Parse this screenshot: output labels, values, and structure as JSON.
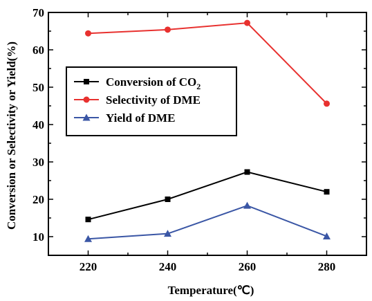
{
  "chart_data": {
    "type": "line",
    "x": [
      220,
      240,
      260,
      280
    ],
    "xlabel": "Temperature(℃)",
    "ylabel": "Conversion or Selectivity or Yield(%)",
    "xlim": [
      210,
      290
    ],
    "ylim": [
      5,
      70
    ],
    "xticks": [
      "220",
      "240",
      "260",
      "280"
    ],
    "yticks": [
      "10",
      "20",
      "30",
      "40",
      "50",
      "60",
      "70"
    ],
    "grid": false,
    "legend_placement": "center-left",
    "series": [
      {
        "name": "Conversion of CO2",
        "name_main": "Conversion of CO",
        "name_sub": "2",
        "color": "#000000",
        "marker": "square",
        "values": [
          14.6,
          20.0,
          27.3,
          22.0
        ]
      },
      {
        "name": "Selectivity of DME",
        "color": "#e8312f",
        "marker": "circle",
        "values": [
          64.4,
          65.4,
          67.2,
          45.6
        ]
      },
      {
        "name": "Yield of DME",
        "color": "#3a56a5",
        "marker": "triangle",
        "values": [
          9.4,
          10.8,
          18.3,
          10.1
        ]
      }
    ]
  }
}
